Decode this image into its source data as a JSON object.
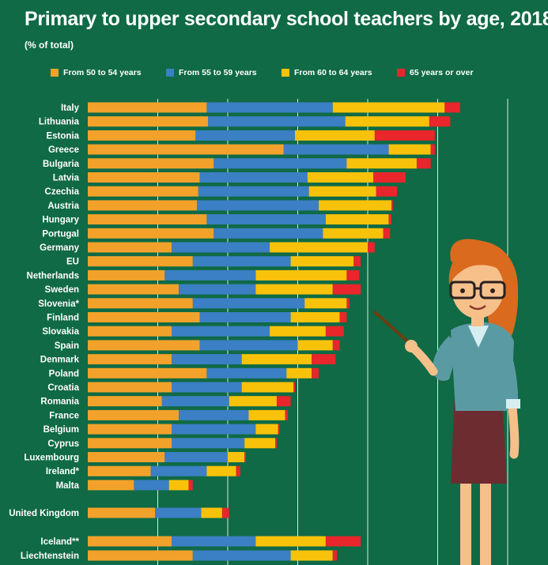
{
  "title": "Primary to upper secondary school teachers by age, 2018",
  "subtitle": "(% of total)",
  "colors": {
    "background": "#0f6a45",
    "series": [
      "#f2a22a",
      "#3b7fc4",
      "#f9c20a",
      "#e8262b"
    ]
  },
  "legend": [
    {
      "label": "From 50 to 54 years",
      "color": "#f2a22a"
    },
    {
      "label": "From 55 to 59 years",
      "color": "#3b7fc4"
    },
    {
      "label": "From 60 to 64 years",
      "color": "#f9c20a"
    },
    {
      "label": "65 years or over",
      "color": "#e8262b"
    }
  ],
  "chart_data": {
    "type": "bar",
    "orientation": "horizontal",
    "stacked": true,
    "title": "Primary to upper secondary school teachers by age, 2018",
    "subtitle": "(% of total)",
    "xlim": [
      0,
      35
    ],
    "grid": true,
    "legend_position": "top",
    "categories": [
      "Italy",
      "Lithuania",
      "Estonia",
      "Greece",
      "Bulgaria",
      "Latvia",
      "Czechia",
      "Austria",
      "Hungary",
      "Portugal",
      "Germany",
      "EU",
      "Netherlands",
      "Sweden",
      "Slovenia*",
      "Finland",
      "Slovakia",
      "Spain",
      "Denmark",
      "Poland",
      "Croatia",
      "Romania",
      "France",
      "Belgium",
      "Cyprus",
      "Luxembourg",
      "Ireland*",
      "Malta",
      "United Kingdom",
      "Iceland**",
      "Liechtenstein"
    ],
    "series": [
      {
        "name": "From 50 to 54 years",
        "color": "#f2a22a",
        "values": [
          8.5,
          8.6,
          7.7,
          14.0,
          9.0,
          8.0,
          7.9,
          7.8,
          8.5,
          9.0,
          6.0,
          7.5,
          5.5,
          6.5,
          7.5,
          8.0,
          6.0,
          8.0,
          6.0,
          8.5,
          6.0,
          5.3,
          6.5,
          6.0,
          6.0,
          5.5,
          4.5,
          3.3,
          4.8,
          6.0,
          7.5
        ]
      },
      {
        "name": "From 55 to 59 years",
        "color": "#3b7fc4",
        "values": [
          9.0,
          9.8,
          7.1,
          7.5,
          9.5,
          7.7,
          7.9,
          8.7,
          8.5,
          7.8,
          7.0,
          7.0,
          6.5,
          5.5,
          8.0,
          6.5,
          7.0,
          7.0,
          5.0,
          5.7,
          5.0,
          4.8,
          5.0,
          6.0,
          5.2,
          4.5,
          4.0,
          2.5,
          3.3,
          6.0,
          7.0
        ]
      },
      {
        "name": "From 60 to 64 years",
        "color": "#f9c20a",
        "values": [
          8.0,
          6.0,
          5.7,
          3.0,
          5.0,
          4.7,
          4.8,
          5.2,
          4.5,
          4.3,
          7.0,
          4.5,
          6.5,
          5.5,
          3.0,
          3.5,
          4.0,
          2.5,
          5.0,
          1.8,
          3.7,
          3.4,
          2.6,
          1.6,
          2.2,
          1.2,
          2.1,
          1.4,
          1.5,
          5.0,
          3.0
        ]
      },
      {
        "name": "65 years or over",
        "color": "#e8262b",
        "values": [
          1.1,
          1.5,
          4.3,
          0.3,
          1.0,
          2.3,
          1.5,
          0.1,
          0.2,
          0.5,
          0.5,
          0.5,
          0.9,
          2.0,
          0.2,
          0.5,
          1.3,
          0.5,
          1.7,
          0.5,
          0.1,
          1.0,
          0.2,
          0.1,
          0.1,
          0.1,
          0.3,
          0.3,
          0.5,
          2.5,
          0.3
        ]
      }
    ]
  }
}
